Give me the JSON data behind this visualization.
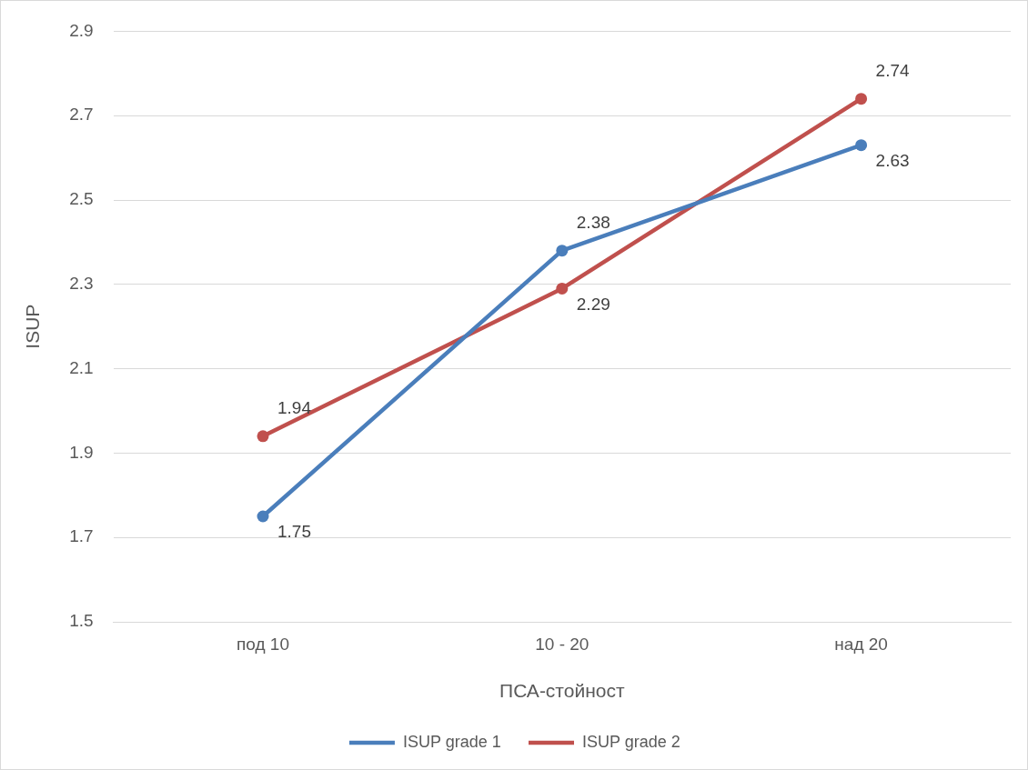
{
  "chart_data": {
    "type": "line",
    "xlabel": "ПСА-стойност",
    "ylabel": "ISUP",
    "categories": [
      "под 10",
      "10 - 20",
      "над 20"
    ],
    "series": [
      {
        "name": "ISUP grade 1",
        "color": "#4a7ebb",
        "values": [
          1.75,
          2.38,
          2.63
        ]
      },
      {
        "name": "ISUP grade 2",
        "color": "#c0504d",
        "values": [
          1.94,
          2.29,
          2.74
        ]
      }
    ],
    "ylim": [
      1.5,
      2.9
    ],
    "yticks": [
      1.5,
      1.7,
      1.9,
      2.1,
      2.3,
      2.5,
      2.7,
      2.9
    ],
    "grid": "y",
    "legend": "bottom",
    "marker": "circle",
    "line_style": "solid",
    "data_labels": true
  }
}
